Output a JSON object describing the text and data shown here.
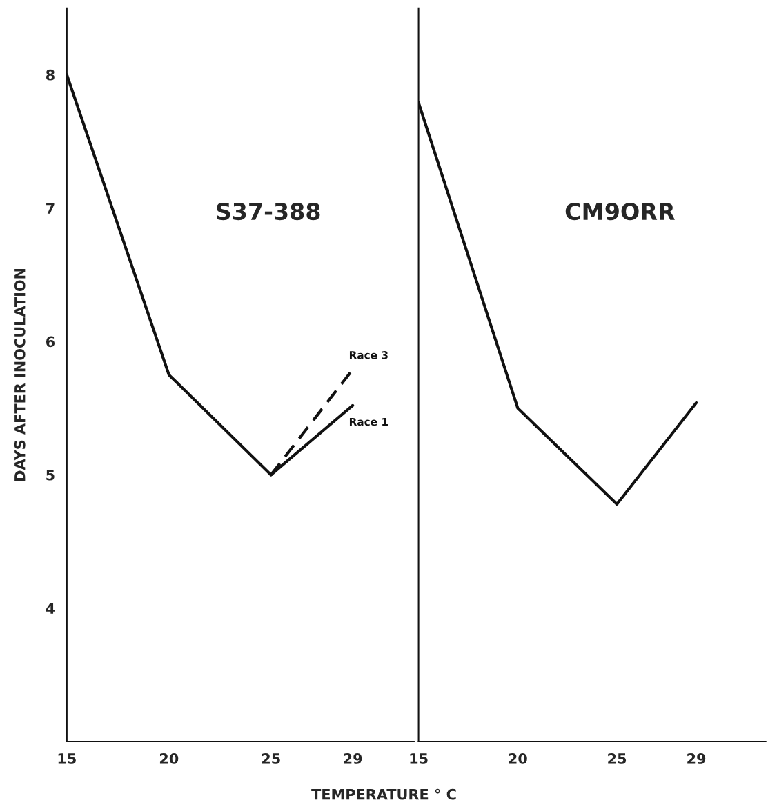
{
  "chart_data": [
    {
      "type": "line",
      "title": "S37-388",
      "xlabel": "TEMPERATURE ° C",
      "ylabel": "DAYS AFTER INOCULATION",
      "xlim": [
        15,
        32
      ],
      "xticks": [
        15,
        20,
        25,
        29
      ],
      "ylim": [
        3,
        8.5
      ],
      "yticks": [
        4,
        5,
        6,
        7,
        8
      ],
      "grid": false,
      "legend": false,
      "marker": "none",
      "series": [
        {
          "x": [
            15,
            20,
            25
          ],
          "values": [
            8.0,
            5.75,
            5.0
          ],
          "color": "#111111",
          "line_style": "solid"
        },
        {
          "name": "Race 1",
          "x": [
            25,
            29
          ],
          "values": [
            5.0,
            5.52
          ],
          "color": "#111111",
          "line_style": "solid"
        },
        {
          "name": "Race 3",
          "x": [
            25,
            29
          ],
          "values": [
            5.0,
            5.79
          ],
          "color": "#111111",
          "line_style": "dashed"
        }
      ]
    },
    {
      "type": "line",
      "title": "CM9ORR",
      "xlim": [
        15,
        32.5
      ],
      "xticks": [
        15,
        20,
        25,
        29
      ],
      "ylim": [
        3,
        8.5
      ],
      "tick_labels": "x",
      "grid": false,
      "legend": false,
      "marker": "none",
      "series": [
        {
          "x": [
            15,
            20,
            25,
            29
          ],
          "values": [
            7.79,
            5.5,
            4.78,
            5.54
          ],
          "color": "#111111",
          "line_style": "solid"
        }
      ]
    }
  ]
}
